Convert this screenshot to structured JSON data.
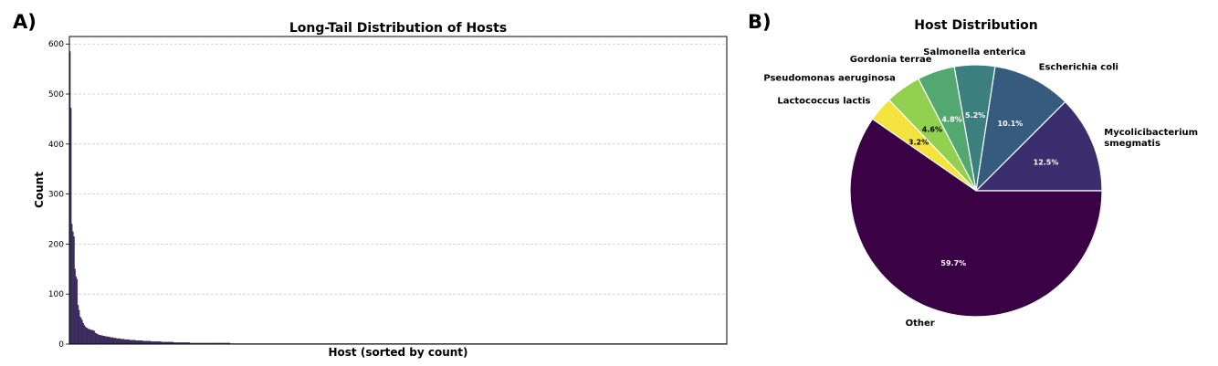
{
  "panels": {
    "a": "A)",
    "b": "B)"
  },
  "chart_data": [
    {
      "type": "bar",
      "title": "Long-Tail Distribution of Hosts",
      "xlabel": "Host (sorted by count)",
      "ylabel": "Count",
      "ylim": [
        0,
        615
      ],
      "yticks": [
        0,
        100,
        200,
        300,
        400,
        500,
        600
      ],
      "grid": true,
      "bar_color": "#3b2a5c",
      "values": [
        585,
        472,
        240,
        225,
        215,
        150,
        135,
        130,
        78,
        68,
        55,
        52,
        48,
        42,
        38,
        35,
        33,
        32,
        30,
        30,
        29,
        28,
        28,
        27,
        26,
        22,
        21,
        20,
        19,
        18,
        18,
        17,
        17,
        16,
        16,
        15,
        15,
        15,
        14,
        14,
        13,
        13,
        13,
        12,
        12,
        12,
        11,
        11,
        11,
        11,
        10,
        10,
        10,
        10,
        9,
        9,
        9,
        9,
        9,
        8,
        8,
        8,
        8,
        8,
        8,
        7,
        7,
        7,
        7,
        7,
        7,
        7,
        6,
        6,
        6,
        6,
        6,
        6,
        6,
        6,
        5,
        5,
        5,
        5,
        5,
        5,
        5,
        5,
        5,
        5,
        4,
        4,
        4,
        4,
        4,
        4,
        4,
        4,
        4,
        4,
        4,
        4,
        3,
        3,
        3,
        3,
        3,
        3,
        3,
        3,
        3,
        3,
        3,
        3,
        3,
        3,
        3,
        3,
        2,
        2,
        2,
        2,
        2,
        2,
        2,
        2,
        2,
        2,
        2,
        2,
        2,
        2,
        2,
        2,
        2,
        2,
        2,
        2,
        2,
        2,
        2,
        2,
        2,
        2,
        2,
        2,
        2,
        2,
        2,
        2,
        2,
        2,
        2,
        2,
        2,
        2,
        2,
        2,
        1,
        1,
        1,
        1,
        1,
        1,
        1,
        1,
        1,
        1,
        1,
        1,
        1,
        1,
        1,
        1,
        1,
        1,
        1,
        1,
        1,
        1,
        1,
        1,
        1,
        1,
        1,
        1,
        1,
        1,
        1,
        1,
        1,
        1,
        1,
        1,
        1,
        1,
        1,
        1,
        1,
        1,
        1,
        1,
        1,
        1,
        1,
        1,
        1,
        1,
        1,
        1,
        1,
        1,
        1,
        1,
        1,
        1,
        1,
        1,
        1,
        1,
        1,
        1,
        1,
        1,
        1,
        1,
        1,
        1,
        1,
        1,
        1,
        1,
        1,
        1,
        1,
        1,
        1,
        1,
        1,
        1,
        1,
        1,
        1,
        1,
        1,
        1,
        1,
        1,
        1,
        1,
        1,
        1,
        1,
        1,
        1,
        1,
        1,
        1,
        1,
        1,
        1,
        1,
        1,
        1,
        1,
        1,
        1,
        1,
        1,
        1,
        1,
        1,
        1,
        1,
        1,
        1,
        1,
        1,
        1,
        1,
        1,
        1,
        1,
        1,
        1,
        1,
        1,
        1,
        1,
        1,
        1,
        1,
        1,
        1,
        1,
        1,
        1,
        1,
        1,
        1,
        1,
        1,
        1,
        1,
        1,
        1,
        1,
        1,
        1,
        1,
        1,
        1,
        1,
        1,
        1,
        1,
        1,
        1,
        1,
        1,
        1,
        1,
        1,
        1,
        1,
        1,
        1,
        1,
        1,
        1,
        1,
        1,
        1,
        1,
        1,
        1,
        1,
        1,
        1,
        1,
        1,
        1,
        1,
        1,
        1,
        1,
        1,
        1,
        1,
        1,
        1,
        1,
        1,
        1,
        1,
        1,
        1,
        1,
        1,
        1,
        1,
        1,
        1,
        1,
        1,
        1,
        1,
        1,
        1,
        1,
        1,
        1,
        1,
        1,
        1,
        1,
        1,
        1,
        1,
        1,
        1,
        1,
        1,
        1,
        1,
        1,
        1,
        1,
        1,
        1,
        1,
        1,
        1,
        1,
        1,
        1,
        1,
        1,
        1,
        1,
        1,
        1,
        1,
        1,
        1,
        1,
        1,
        1,
        1,
        1,
        1,
        1,
        1,
        1,
        1,
        1,
        1,
        1,
        1,
        1,
        1,
        1,
        1,
        1,
        1,
        1,
        1,
        1,
        1,
        1,
        1,
        1,
        1,
        1,
        1,
        1,
        1,
        1,
        1,
        1,
        1,
        1,
        1,
        1,
        1,
        1,
        1,
        1,
        1,
        1,
        1,
        1,
        1,
        1,
        1,
        1,
        1,
        1,
        1,
        1,
        1,
        1,
        1,
        1,
        1,
        1,
        1,
        1,
        1,
        1,
        1,
        1,
        1,
        1,
        1,
        1,
        1,
        1,
        1,
        1,
        1,
        1,
        1,
        1,
        1,
        1,
        1,
        1,
        1,
        1,
        1,
        1,
        1,
        1,
        1,
        1,
        1,
        1,
        1,
        1,
        1,
        1,
        1,
        1,
        1,
        1,
        1,
        1,
        1,
        1,
        1,
        1,
        1,
        1,
        1,
        1,
        1,
        1,
        1,
        1,
        1,
        1,
        1,
        1,
        1,
        1,
        1,
        1,
        1,
        1,
        1,
        1,
        1,
        1,
        1,
        1,
        1,
        1,
        1,
        1,
        1,
        1,
        1,
        1,
        1,
        1,
        1,
        1,
        1,
        1,
        1,
        1,
        1,
        1,
        1,
        1,
        1,
        1,
        1,
        1,
        1,
        1,
        1,
        1,
        1,
        1,
        1,
        1,
        1,
        1,
        1,
        1,
        1,
        1,
        1,
        1,
        1,
        1,
        1,
        1,
        1,
        1,
        1,
        1,
        1,
        1,
        1,
        1,
        1,
        1,
        1,
        1,
        1,
        1,
        1,
        1,
        1,
        1,
        1,
        1,
        1,
        1,
        1,
        1,
        1,
        1,
        1,
        1,
        1,
        1,
        1,
        1,
        1,
        1,
        1,
        1,
        1,
        1,
        1,
        1,
        1,
        1,
        1,
        1,
        1,
        1,
        1,
        1,
        1,
        1,
        1,
        1,
        1,
        1,
        1,
        1,
        1,
        1,
        1,
        1,
        1,
        1,
        1,
        1,
        1
      ]
    },
    {
      "type": "pie",
      "title": "Host Distribution",
      "slices": [
        {
          "label": "Mycolicibacterium smegmatis",
          "lines": [
            "Mycolicibacterium",
            "smegmatis"
          ],
          "pct": 12.5,
          "pct_label": "12.5%",
          "color": "#3b2e6e",
          "text_color": "#ffffff"
        },
        {
          "label": "Escherichia coli",
          "lines": [
            "Escherichia coli"
          ],
          "pct": 10.1,
          "pct_label": "10.1%",
          "color": "#365b7e",
          "text_color": "#ffffff"
        },
        {
          "label": "Salmonella enterica",
          "lines": [
            "Salmonella enterica"
          ],
          "pct": 5.2,
          "pct_label": "5.2%",
          "color": "#3b7f7e",
          "text_color": "#ffffff"
        },
        {
          "label": "Gordonia terrae",
          "lines": [
            "Gordonia terrae"
          ],
          "pct": 4.8,
          "pct_label": "4.8%",
          "color": "#52a86f",
          "text_color": "#ffffff"
        },
        {
          "label": "Pseudomonas aeruginosa",
          "lines": [
            "Pseudomonas aeruginosa"
          ],
          "pct": 4.6,
          "pct_label": "4.6%",
          "color": "#92d14f",
          "text_color": "#000000"
        },
        {
          "label": "Lactococcus lactis",
          "lines": [
            "Lactococcus lactis"
          ],
          "pct": 3.2,
          "pct_label": "3.2%",
          "color": "#f4e33c",
          "text_color": "#000000"
        },
        {
          "label": "Other",
          "lines": [
            "Other"
          ],
          "pct": 59.7,
          "pct_label": "59.7%",
          "color": "#3b0145",
          "text_color": "#ffffff"
        }
      ]
    }
  ]
}
